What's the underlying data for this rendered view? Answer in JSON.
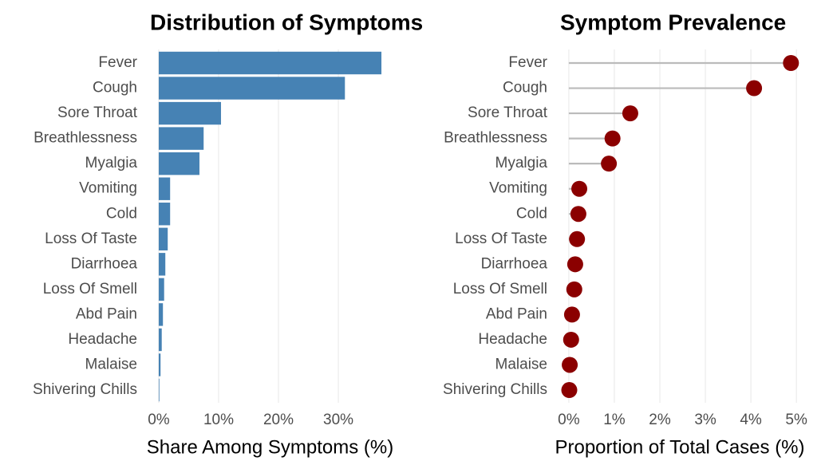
{
  "chart_data": [
    {
      "type": "bar",
      "title": "Distribution of Symptoms",
      "x_label": "Share Among Symptoms (%)",
      "categories": [
        "Fever",
        "Cough",
        "Sore Throat",
        "Breathlessness",
        "Myalgia",
        "Vomiting",
        "Cold",
        "Loss Of Taste",
        "Diarrhoea",
        "Loss Of Smell",
        "Abd Pain",
        "Headache",
        "Malaise",
        "Shivering Chills"
      ],
      "values": [
        37.2,
        31.1,
        10.4,
        7.5,
        6.8,
        1.9,
        1.9,
        1.5,
        1.1,
        0.9,
        0.7,
        0.5,
        0.3,
        0.1
      ],
      "color": "#4682b4",
      "xlim": [
        -1.86,
        39.06
      ],
      "xticks": [
        {
          "value": 0,
          "label": "0%"
        },
        {
          "value": 10,
          "label": "10%"
        },
        {
          "value": 20,
          "label": "20%"
        },
        {
          "value": 30,
          "label": "30%"
        }
      ],
      "grid": true
    },
    {
      "type": "lollipop",
      "title": "Symptom Prevalence",
      "x_label": "Proportion of Total Cases (%)",
      "categories": [
        "Fever",
        "Cough",
        "Sore Throat",
        "Breathlessness",
        "Myalgia",
        "Vomiting",
        "Cold",
        "Loss Of Taste",
        "Diarrhoea",
        "Loss Of Smell",
        "Abd Pain",
        "Headache",
        "Malaise",
        "Shivering Chills"
      ],
      "values": [
        4.88,
        4.07,
        1.35,
        0.96,
        0.88,
        0.23,
        0.21,
        0.18,
        0.14,
        0.12,
        0.07,
        0.05,
        0.02,
        0.01
      ],
      "color": "#8b0000",
      "stem_color": "#bbbbbb",
      "xlim": [
        -0.244,
        5.12
      ],
      "xticks": [
        {
          "value": 0,
          "label": "0%"
        },
        {
          "value": 1,
          "label": "1%"
        },
        {
          "value": 2,
          "label": "2%"
        },
        {
          "value": 3,
          "label": "3%"
        },
        {
          "value": 4,
          "label": "4%"
        },
        {
          "value": 5,
          "label": "5%"
        }
      ],
      "grid": true
    }
  ]
}
